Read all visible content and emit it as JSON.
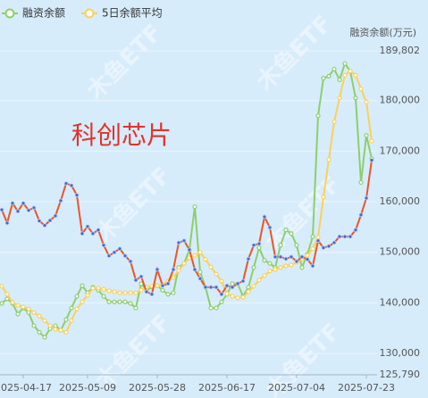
{
  "chart_data": {
    "type": "line",
    "annotation": "科创芯片",
    "y_axis_title": "融资余额(万元)",
    "watermark": "木鱼ETF",
    "categories": [
      null,
      null,
      null,
      null,
      "2025-04-17",
      null,
      null,
      null,
      null,
      null,
      null,
      null,
      null,
      null,
      null,
      null,
      "2025-05-09",
      null,
      null,
      null,
      null,
      null,
      null,
      null,
      null,
      null,
      null,
      null,
      null,
      "2025-05-28",
      null,
      null,
      null,
      null,
      null,
      null,
      null,
      null,
      null,
      null,
      null,
      null,
      "2025-06-17",
      null,
      null,
      null,
      null,
      null,
      null,
      null,
      null,
      null,
      null,
      null,
      null,
      "2025-07-04",
      null,
      null,
      null,
      null,
      null,
      null,
      null,
      null,
      null,
      null,
      null,
      null,
      "2025-07-23",
      null
    ],
    "series": [
      {
        "name": "融资余额",
        "color": "#8ccf6c",
        "values": [
          139900,
          140800,
          139900,
          137800,
          139000,
          138100,
          135500,
          134200,
          133200,
          134900,
          135500,
          134600,
          136700,
          139000,
          141300,
          143400,
          142000,
          143100,
          142500,
          141300,
          140200,
          140200,
          140200,
          140200,
          139900,
          139000,
          143800,
          142500,
          143100,
          143400,
          142500,
          141700,
          142000,
          147000,
          147800,
          150500,
          159000,
          146100,
          143100,
          139000,
          139000,
          140200,
          141700,
          143800,
          143800,
          141300,
          143100,
          147000,
          150900,
          148400,
          147800,
          147000,
          151400,
          154400,
          153700,
          151400,
          147000,
          149600,
          153100,
          177000,
          184400,
          184800,
          186200,
          184100,
          187300,
          185800,
          180500,
          163800,
          173100,
          168500
        ]
      },
      {
        "name": "5日余额平均",
        "color": "#fbd05a",
        "values": [
          143300,
          141700,
          140100,
          139500,
          139200,
          138800,
          138100,
          137400,
          136500,
          135500,
          134800,
          134600,
          134200,
          136500,
          138800,
          140200,
          141500,
          142900,
          142900,
          142700,
          142400,
          142200,
          142000,
          142000,
          142000,
          142000,
          142500,
          143100,
          143300,
          143400,
          143600,
          144300,
          145000,
          146400,
          147800,
          148900,
          149400,
          150000,
          148600,
          147100,
          145700,
          144300,
          141800,
          141300,
          141000,
          141100,
          142200,
          143300,
          144500,
          145400,
          146300,
          146600,
          147000,
          147300,
          147500,
          148000,
          148700,
          149400,
          150700,
          153000,
          160900,
          168300,
          175800,
          180500,
          185000,
          185800,
          185000,
          182300,
          179700,
          172000
        ]
      },
      {
        "color": "#e8562a",
        "marker_color": "#3d6bd6",
        "values": [
          158400,
          155800,
          159700,
          158100,
          159700,
          158300,
          158800,
          156200,
          155300,
          156300,
          157200,
          160200,
          163600,
          163200,
          161300,
          153700,
          155100,
          153700,
          154400,
          151400,
          149300,
          150000,
          150700,
          149300,
          148200,
          144500,
          145200,
          142200,
          141700,
          146600,
          143400,
          143800,
          146600,
          151900,
          152300,
          150500,
          146600,
          144800,
          143100,
          143100,
          143100,
          141700,
          143400,
          143100,
          143800,
          144300,
          148700,
          151400,
          151700,
          157000,
          154900,
          149100,
          149100,
          148700,
          149100,
          148200,
          149100,
          148600,
          147300,
          152300,
          150900,
          151200,
          151900,
          153100,
          153100,
          153100,
          154400,
          157400,
          160700,
          168200
        ]
      }
    ],
    "ylim": [
      125790,
      189802
    ],
    "yticks": [
      {
        "value": 125790,
        "label": "125,790"
      },
      {
        "value": 130000,
        "label": "130,000"
      },
      {
        "value": 140000,
        "label": "140,000"
      },
      {
        "value": 150000,
        "label": "150,000"
      },
      {
        "value": 160000,
        "label": "160,000"
      },
      {
        "value": 170000,
        "label": "170,000"
      },
      {
        "value": 180000,
        "label": "180,000"
      },
      {
        "value": 189802,
        "label": "189,802"
      }
    ],
    "grid": true
  }
}
